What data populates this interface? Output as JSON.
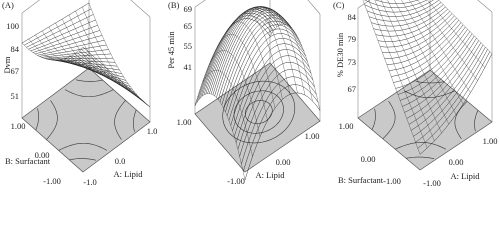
{
  "figure": {
    "panels": [
      {
        "label": "(A)",
        "z_label": "Dvm",
        "z_ticks": [
          "100",
          "84",
          "67",
          "51"
        ],
        "b_label": "B: Surfactant",
        "b_ticks": [
          "1.00",
          "0.00",
          "-1.00"
        ],
        "a_label": "A: Lipid",
        "a_ticks": [
          "-1.0",
          "0.0",
          "1.0"
        ]
      },
      {
        "label": "(B)",
        "z_label": "Per 45 min",
        "z_ticks": [
          "69",
          "65",
          "55",
          "41"
        ],
        "b_ticks": [
          "1.00",
          "-1.00"
        ],
        "a_label": "A: Lipid",
        "a_ticks": [
          "0.00",
          "1.00"
        ]
      },
      {
        "label": "(C)",
        "z_label": "% DE30 min",
        "z_ticks": [
          "84",
          "79",
          "73",
          "67"
        ],
        "b_label": "B: Surfactant",
        "b_ticks": [
          "1.00",
          "0.00",
          "-1.00"
        ],
        "a_label": "A: Lipid",
        "a_ticks": [
          "-1.00",
          "0.00",
          "1.00"
        ]
      }
    ]
  }
}
